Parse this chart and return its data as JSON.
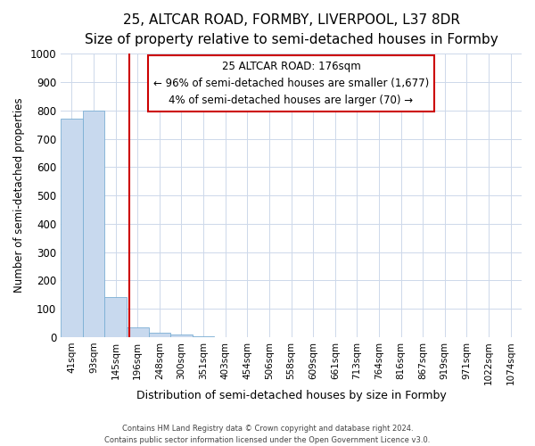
{
  "title": "25, ALTCAR ROAD, FORMBY, LIVERPOOL, L37 8DR",
  "subtitle": "Size of property relative to semi-detached houses in Formby",
  "xlabel": "Distribution of semi-detached houses by size in Formby",
  "ylabel": "Number of semi-detached properties",
  "categories": [
    "41sqm",
    "93sqm",
    "145sqm",
    "196sqm",
    "248sqm",
    "300sqm",
    "351sqm",
    "403sqm",
    "454sqm",
    "506sqm",
    "558sqm",
    "609sqm",
    "661sqm",
    "713sqm",
    "764sqm",
    "816sqm",
    "867sqm",
    "919sqm",
    "971sqm",
    "1022sqm",
    "1074sqm"
  ],
  "values": [
    770,
    800,
    140,
    35,
    15,
    8,
    4,
    0,
    0,
    0,
    0,
    0,
    0,
    0,
    0,
    0,
    0,
    0,
    0,
    0,
    0
  ],
  "bar_color": "#c8d9ee",
  "bar_edge_color": "#7bafd4",
  "annotation_line1": "25 ALTCAR ROAD: 176sqm",
  "annotation_line2": "← 96% of semi-detached houses are smaller (1,677)",
  "annotation_line3": "4% of semi-detached houses are larger (70) →",
  "annotation_box_color": "#ffffff",
  "annotation_box_edge": "#cc0000",
  "red_line_color": "#cc0000",
  "ylim": [
    0,
    1000
  ],
  "yticks": [
    0,
    100,
    200,
    300,
    400,
    500,
    600,
    700,
    800,
    900,
    1000
  ],
  "footer_line1": "Contains HM Land Registry data © Crown copyright and database right 2024.",
  "footer_line2": "Contains public sector information licensed under the Open Government Licence v3.0.",
  "background_color": "#ffffff",
  "grid_color": "#cdd8ea",
  "title_fontsize": 11,
  "subtitle_fontsize": 9.5
}
